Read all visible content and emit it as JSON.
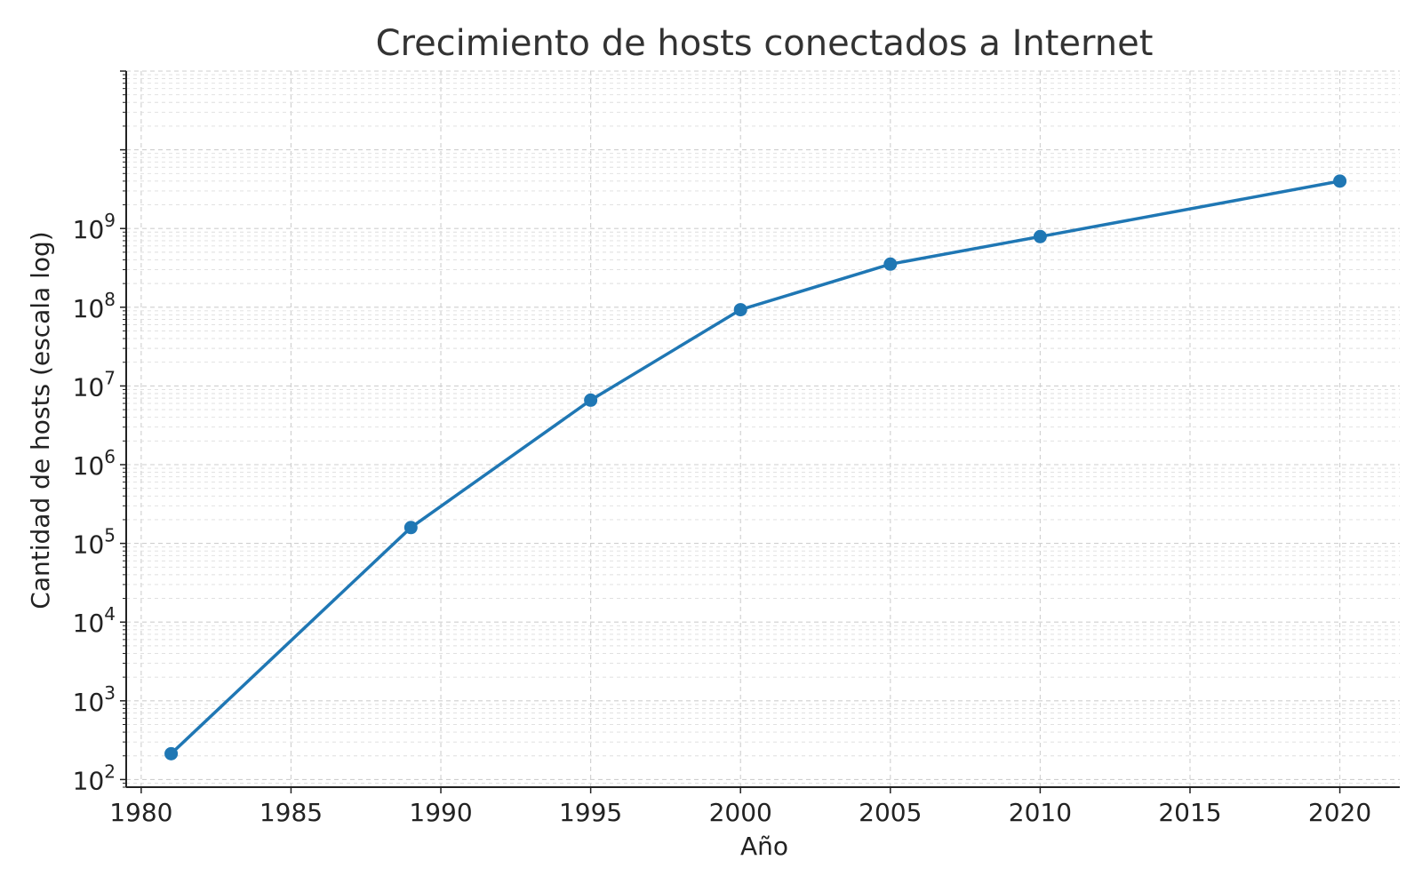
{
  "chart_data": {
    "type": "line",
    "title": "Crecimiento de hosts conectados a Internet",
    "xlabel": "Año",
    "ylabel": "Cantidad de hosts (escala log)",
    "yscale": "log",
    "grid": true,
    "xlim": [
      1979.5,
      2022
    ],
    "ylim": [
      80,
      100000000000
    ],
    "x_ticks": [
      1980,
      1985,
      1990,
      1995,
      2000,
      2005,
      2010,
      2015,
      2020
    ],
    "y_ticks": [
      {
        "value": 100,
        "base": "10",
        "exp": "2"
      },
      {
        "value": 1000,
        "base": "10",
        "exp": "3"
      },
      {
        "value": 10000,
        "base": "10",
        "exp": "4"
      },
      {
        "value": 100000,
        "base": "10",
        "exp": "5"
      },
      {
        "value": 1000000,
        "base": "10",
        "exp": "6"
      },
      {
        "value": 10000000,
        "base": "10",
        "exp": "7"
      },
      {
        "value": 100000000,
        "base": "10",
        "exp": "8"
      },
      {
        "value": 1000000000,
        "base": "10",
        "exp": "9"
      }
    ],
    "series": [
      {
        "color": "#1f77b4",
        "x": [
          1981,
          1989,
          1995,
          2000,
          2005,
          2010,
          2020
        ],
        "y": [
          213,
          159000,
          6600000,
          93000000,
          353000000,
          790000000,
          4000000000
        ]
      }
    ]
  }
}
